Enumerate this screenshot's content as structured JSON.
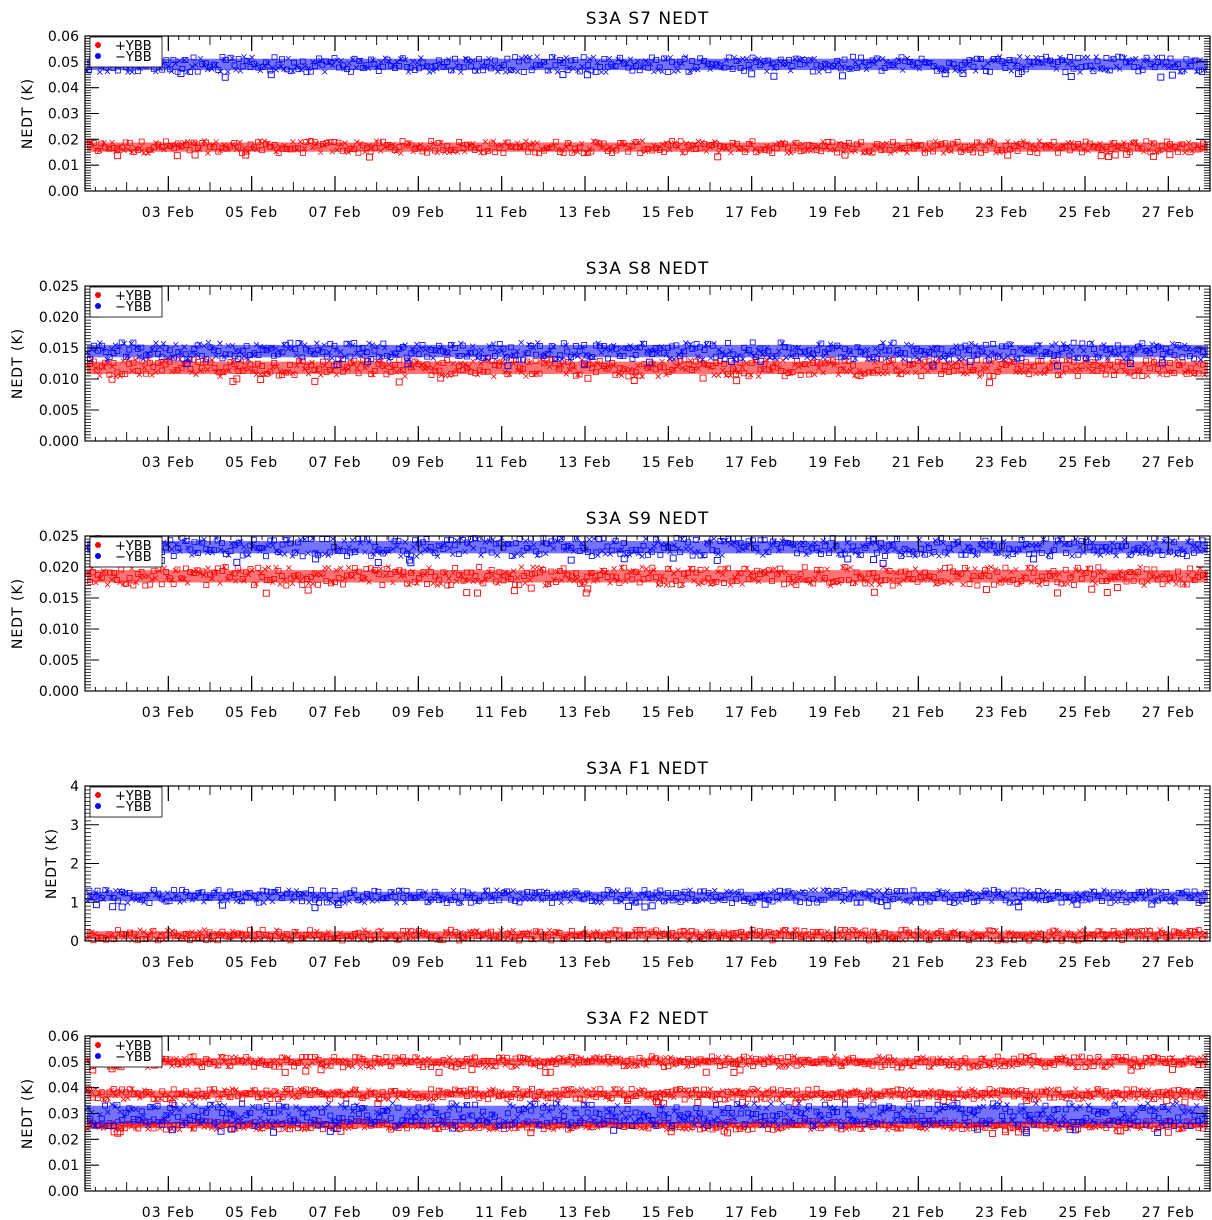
{
  "x_tick_labels": [
    "03 Feb",
    "05 Feb",
    "07 Feb",
    "09 Feb",
    "11 Feb",
    "13 Feb",
    "15 Feb",
    "17 Feb",
    "19 Feb",
    "21 Feb",
    "23 Feb",
    "25 Feb",
    "27 Feb"
  ],
  "legend": [
    {
      "label": "+YBB",
      "color": "#ff0000"
    },
    {
      "label": "−YBB",
      "color": "#0000ff"
    }
  ],
  "chart_data": [
    {
      "type": "scatter",
      "title": "S3A S7 NEDT",
      "ylabel": "NEDT (K)",
      "xlim": [
        "2018-02-01",
        "2018-02-28"
      ],
      "ylim": [
        0,
        0.06
      ],
      "yticks": [
        "0.00",
        "0.01",
        "0.02",
        "0.03",
        "0.04",
        "0.05",
        "0.06"
      ],
      "legend_position": "top-left",
      "series": [
        {
          "name": "+YBB",
          "color": "#ff0000",
          "bands": [
            {
              "center": 0.017,
              "halfwidth": 0.0018,
              "noise": 0.0006
            }
          ]
        },
        {
          "name": "−YBB",
          "color": "#0000ff",
          "bands": [
            {
              "center": 0.049,
              "halfwidth": 0.0022,
              "noise": 0.0008
            }
          ]
        }
      ]
    },
    {
      "type": "scatter",
      "title": "S3A S8 NEDT",
      "ylabel": "NEDT (K)",
      "xlim": [
        "2018-02-01",
        "2018-02-28"
      ],
      "ylim": [
        0,
        0.025
      ],
      "yticks": [
        "0.000",
        "0.005",
        "0.010",
        "0.015",
        "0.020",
        "0.025"
      ],
      "legend_position": "top-left",
      "series": [
        {
          "name": "+YBB",
          "color": "#ff0000",
          "bands": [
            {
              "center": 0.0118,
              "halfwidth": 0.001,
              "noise": 0.0004
            }
          ]
        },
        {
          "name": "−YBB",
          "color": "#0000ff",
          "bands": [
            {
              "center": 0.0145,
              "halfwidth": 0.001,
              "noise": 0.0004
            }
          ]
        }
      ]
    },
    {
      "type": "scatter",
      "title": "S3A S9 NEDT",
      "ylabel": "NEDT (K)",
      "xlim": [
        "2018-02-01",
        "2018-02-28"
      ],
      "ylim": [
        0,
        0.025
      ],
      "yticks": [
        "0.000",
        "0.005",
        "0.010",
        "0.015",
        "0.020",
        "0.025"
      ],
      "legend_position": "top-left",
      "series": [
        {
          "name": "+YBB",
          "color": "#ff0000",
          "bands": [
            {
              "center": 0.0185,
              "halfwidth": 0.001,
              "noise": 0.0005
            }
          ]
        },
        {
          "name": "−YBB",
          "color": "#0000ff",
          "bands": [
            {
              "center": 0.0232,
              "halfwidth": 0.001,
              "noise": 0.0005
            }
          ]
        }
      ]
    },
    {
      "type": "scatter",
      "title": "S3A F1 NEDT",
      "ylabel": "NEDT (K)",
      "xlim": [
        "2018-02-01",
        "2018-02-28"
      ],
      "ylim": [
        0,
        4
      ],
      "yticks": [
        "0",
        "1",
        "2",
        "3",
        "4"
      ],
      "legend_position": "top-left",
      "series": [
        {
          "name": "+YBB",
          "color": "#ff0000",
          "bands": [
            {
              "center": 0.15,
              "halfwidth": 0.1,
              "noise": 0.04
            }
          ]
        },
        {
          "name": "−YBB",
          "color": "#0000ff",
          "bands": [
            {
              "center": 1.15,
              "halfwidth": 0.12,
              "noise": 0.05
            }
          ]
        }
      ]
    },
    {
      "type": "scatter",
      "title": "S3A F2 NEDT",
      "ylabel": "NEDT (K)",
      "xlim": [
        "2018-02-01",
        "2018-02-28"
      ],
      "ylim": [
        0,
        0.06
      ],
      "yticks": [
        "0.00",
        "0.01",
        "0.02",
        "0.03",
        "0.04",
        "0.05",
        "0.06"
      ],
      "legend_position": "top-left",
      "series": [
        {
          "name": "+YBB",
          "color": "#ff0000",
          "bands": [
            {
              "center": 0.05,
              "halfwidth": 0.0014,
              "noise": 0.0008
            },
            {
              "center": 0.0375,
              "halfwidth": 0.0014,
              "noise": 0.0007
            },
            {
              "center": 0.0255,
              "halfwidth": 0.0012,
              "noise": 0.0006
            }
          ]
        },
        {
          "name": "−YBB",
          "color": "#0000ff",
          "bands": [
            {
              "center": 0.0295,
              "halfwidth": 0.0035,
              "noise": 0.001
            }
          ]
        }
      ]
    }
  ]
}
